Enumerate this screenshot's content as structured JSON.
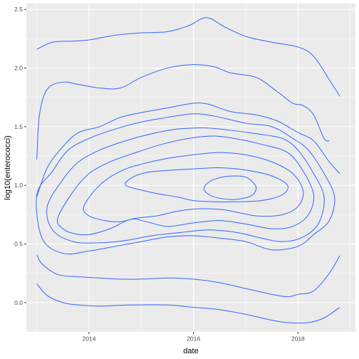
{
  "chart_data": {
    "type": "contour",
    "xlabel": "date",
    "ylabel": "log10(enterococci)",
    "xlim": [
      2012.8,
      2019.1
    ],
    "ylim": [
      -0.25,
      2.55
    ],
    "x_ticks": [
      2014,
      2016,
      2018
    ],
    "x_tick_labels": [
      "2014",
      "2016",
      "2018"
    ],
    "y_ticks": [
      0.0,
      0.5,
      1.0,
      1.5,
      2.0,
      2.5
    ],
    "y_tick_labels": [
      "0.0",
      "0.5",
      "1.0",
      "1.5",
      "2.0",
      "2.5"
    ],
    "grid": true,
    "colors": {
      "panel_background": "#ebebeb",
      "grid": "#ffffff",
      "contour": "#3366ff"
    },
    "contours": [
      {
        "closed": false,
        "points": [
          [
            2013.0,
            2.16
          ],
          [
            2013.3,
            2.22
          ],
          [
            2013.7,
            2.23
          ],
          [
            2014.0,
            2.24
          ],
          [
            2014.5,
            2.28
          ],
          [
            2015.0,
            2.3
          ],
          [
            2015.5,
            2.31
          ],
          [
            2015.9,
            2.36
          ],
          [
            2016.25,
            2.43
          ],
          [
            2016.6,
            2.35
          ],
          [
            2017.0,
            2.27
          ],
          [
            2017.5,
            2.22
          ],
          [
            2018.0,
            2.18
          ],
          [
            2018.3,
            2.1
          ],
          [
            2018.6,
            1.9
          ],
          [
            2018.8,
            1.76
          ]
        ]
      },
      {
        "closed": false,
        "points": [
          [
            2013.0,
            1.22
          ],
          [
            2013.05,
            1.6
          ],
          [
            2013.2,
            1.82
          ],
          [
            2013.5,
            1.88
          ],
          [
            2013.8,
            1.86
          ],
          [
            2014.2,
            1.83
          ],
          [
            2014.6,
            1.83
          ],
          [
            2015.0,
            1.92
          ],
          [
            2015.5,
            2.0
          ],
          [
            2016.0,
            2.03
          ],
          [
            2016.4,
            2.01
          ],
          [
            2016.7,
            1.96
          ],
          [
            2017.2,
            1.92
          ],
          [
            2017.6,
            1.8
          ],
          [
            2017.9,
            1.7
          ],
          [
            2018.1,
            1.68
          ],
          [
            2018.3,
            1.6
          ],
          [
            2018.5,
            1.4
          ],
          [
            2018.6,
            1.38
          ]
        ]
      },
      {
        "closed": false,
        "points": [
          [
            2013.0,
            0.9
          ],
          [
            2013.2,
            1.15
          ],
          [
            2013.5,
            1.33
          ],
          [
            2013.8,
            1.45
          ],
          [
            2014.2,
            1.5
          ],
          [
            2014.6,
            1.58
          ],
          [
            2015.0,
            1.62
          ],
          [
            2015.5,
            1.66
          ],
          [
            2016.0,
            1.7
          ],
          [
            2016.3,
            1.69
          ],
          [
            2016.7,
            1.63
          ],
          [
            2017.2,
            1.6
          ],
          [
            2017.6,
            1.55
          ],
          [
            2018.0,
            1.45
          ],
          [
            2018.3,
            1.38
          ],
          [
            2018.6,
            1.2
          ],
          [
            2018.8,
            1.1
          ]
        ]
      },
      {
        "closed": false,
        "points": [
          [
            2013.0,
            0.41
          ],
          [
            2013.1,
            0.33
          ],
          [
            2013.4,
            0.24
          ],
          [
            2013.8,
            0.22
          ],
          [
            2014.2,
            0.21
          ],
          [
            2014.6,
            0.2
          ],
          [
            2015.0,
            0.2
          ],
          [
            2015.5,
            0.21
          ],
          [
            2016.0,
            0.2
          ],
          [
            2016.5,
            0.17
          ],
          [
            2017.0,
            0.12
          ],
          [
            2017.5,
            0.07
          ],
          [
            2017.8,
            0.05
          ],
          [
            2018.0,
            0.07
          ],
          [
            2018.3,
            0.1
          ],
          [
            2018.6,
            0.25
          ],
          [
            2018.8,
            0.4
          ]
        ]
      },
      {
        "closed": false,
        "points": [
          [
            2013.0,
            0.16
          ],
          [
            2013.2,
            0.06
          ],
          [
            2013.5,
            0.0
          ],
          [
            2013.8,
            -0.02
          ],
          [
            2014.2,
            -0.03
          ],
          [
            2014.8,
            -0.02
          ],
          [
            2015.5,
            -0.02
          ],
          [
            2016.0,
            -0.04
          ],
          [
            2016.5,
            -0.06
          ],
          [
            2017.0,
            -0.1
          ],
          [
            2017.5,
            -0.15
          ],
          [
            2017.8,
            -0.17
          ],
          [
            2018.2,
            -0.17
          ],
          [
            2018.5,
            -0.13
          ],
          [
            2018.8,
            -0.04
          ]
        ]
      },
      {
        "closed": true,
        "points": [
          [
            2013.0,
            0.92
          ],
          [
            2013.3,
            1.12
          ],
          [
            2013.6,
            1.3
          ],
          [
            2014.0,
            1.4
          ],
          [
            2014.5,
            1.48
          ],
          [
            2015.0,
            1.54
          ],
          [
            2015.5,
            1.58
          ],
          [
            2016.0,
            1.61
          ],
          [
            2016.4,
            1.59
          ],
          [
            2017.0,
            1.53
          ],
          [
            2017.5,
            1.5
          ],
          [
            2017.9,
            1.4
          ],
          [
            2018.2,
            1.3
          ],
          [
            2018.5,
            1.1
          ],
          [
            2018.7,
            0.9
          ],
          [
            2018.6,
            0.7
          ],
          [
            2018.3,
            0.58
          ],
          [
            2018.0,
            0.48
          ],
          [
            2017.5,
            0.45
          ],
          [
            2017.0,
            0.52
          ],
          [
            2016.5,
            0.55
          ],
          [
            2016.0,
            0.57
          ],
          [
            2015.5,
            0.56
          ],
          [
            2015.0,
            0.52
          ],
          [
            2014.5,
            0.48
          ],
          [
            2014.0,
            0.44
          ],
          [
            2013.5,
            0.42
          ],
          [
            2013.1,
            0.55
          ]
        ]
      },
      {
        "closed": true,
        "points": [
          [
            2013.2,
            0.82
          ],
          [
            2013.5,
            1.05
          ],
          [
            2013.8,
            1.2
          ],
          [
            2014.2,
            1.3
          ],
          [
            2014.7,
            1.38
          ],
          [
            2015.2,
            1.44
          ],
          [
            2015.7,
            1.48
          ],
          [
            2016.2,
            1.49
          ],
          [
            2016.7,
            1.47
          ],
          [
            2017.2,
            1.44
          ],
          [
            2017.7,
            1.4
          ],
          [
            2018.0,
            1.3
          ],
          [
            2018.3,
            1.1
          ],
          [
            2018.5,
            0.9
          ],
          [
            2018.4,
            0.68
          ],
          [
            2018.1,
            0.56
          ],
          [
            2017.7,
            0.52
          ],
          [
            2017.3,
            0.55
          ],
          [
            2016.8,
            0.6
          ],
          [
            2016.3,
            0.62
          ],
          [
            2015.8,
            0.6
          ],
          [
            2015.2,
            0.57
          ],
          [
            2014.7,
            0.53
          ],
          [
            2014.2,
            0.51
          ],
          [
            2013.7,
            0.52
          ],
          [
            2013.3,
            0.62
          ]
        ]
      },
      {
        "closed": true,
        "points": [
          [
            2013.4,
            0.72
          ],
          [
            2013.7,
            0.95
          ],
          [
            2014.0,
            1.1
          ],
          [
            2014.4,
            1.2
          ],
          [
            2014.9,
            1.28
          ],
          [
            2015.4,
            1.35
          ],
          [
            2015.9,
            1.4
          ],
          [
            2016.4,
            1.42
          ],
          [
            2016.9,
            1.39
          ],
          [
            2017.3,
            1.35
          ],
          [
            2017.8,
            1.28
          ],
          [
            2018.1,
            1.12
          ],
          [
            2018.3,
            0.92
          ],
          [
            2018.2,
            0.75
          ],
          [
            2017.9,
            0.65
          ],
          [
            2017.5,
            0.63
          ],
          [
            2017.0,
            0.67
          ],
          [
            2016.5,
            0.7
          ],
          [
            2016.0,
            0.68
          ],
          [
            2015.5,
            0.65
          ],
          [
            2015.1,
            0.69
          ],
          [
            2014.8,
            0.71
          ],
          [
            2014.4,
            0.63
          ],
          [
            2014.0,
            0.58
          ],
          [
            2013.7,
            0.59
          ],
          [
            2013.5,
            0.63
          ]
        ]
      },
      {
        "closed": true,
        "points": [
          [
            2013.9,
            0.82
          ],
          [
            2014.2,
            1.0
          ],
          [
            2014.6,
            1.12
          ],
          [
            2015.0,
            1.18
          ],
          [
            2015.5,
            1.23
          ],
          [
            2016.0,
            1.26
          ],
          [
            2016.5,
            1.28
          ],
          [
            2017.0,
            1.26
          ],
          [
            2017.5,
            1.2
          ],
          [
            2017.9,
            1.1
          ],
          [
            2018.1,
            0.95
          ],
          [
            2018.0,
            0.82
          ],
          [
            2017.7,
            0.75
          ],
          [
            2017.2,
            0.74
          ],
          [
            2016.6,
            0.79
          ],
          [
            2016.1,
            0.8
          ],
          [
            2015.7,
            0.78
          ],
          [
            2015.3,
            0.74
          ],
          [
            2014.9,
            0.72
          ],
          [
            2014.6,
            0.69
          ],
          [
            2014.3,
            0.7
          ],
          [
            2014.0,
            0.74
          ]
        ]
      },
      {
        "closed": true,
        "points": [
          [
            2014.7,
            1.0
          ],
          [
            2014.8,
            1.06
          ],
          [
            2015.1,
            1.11
          ],
          [
            2015.6,
            1.13
          ],
          [
            2016.0,
            1.14
          ],
          [
            2016.5,
            1.15
          ],
          [
            2017.0,
            1.13
          ],
          [
            2017.5,
            1.08
          ],
          [
            2017.8,
            1.0
          ],
          [
            2017.7,
            0.92
          ],
          [
            2017.3,
            0.87
          ],
          [
            2016.8,
            0.86
          ],
          [
            2016.4,
            0.86
          ],
          [
            2016.0,
            0.87
          ],
          [
            2015.7,
            0.9
          ],
          [
            2015.3,
            0.93
          ],
          [
            2015.0,
            0.96
          ]
        ]
      },
      {
        "closed": true,
        "points": [
          [
            2016.2,
            0.97
          ],
          [
            2016.3,
            1.03
          ],
          [
            2016.55,
            1.07
          ],
          [
            2016.8,
            1.08
          ],
          [
            2017.0,
            1.07
          ],
          [
            2017.15,
            1.02
          ],
          [
            2017.2,
            0.97
          ],
          [
            2017.1,
            0.91
          ],
          [
            2016.8,
            0.88
          ],
          [
            2016.5,
            0.89
          ],
          [
            2016.3,
            0.92
          ]
        ]
      }
    ]
  }
}
